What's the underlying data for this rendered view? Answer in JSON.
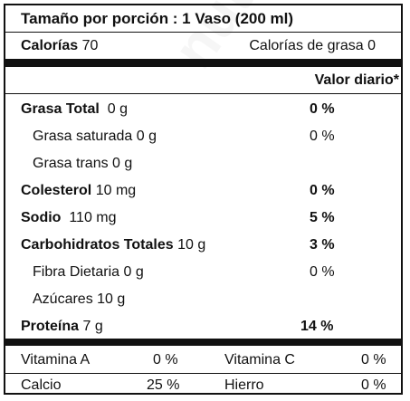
{
  "header": {
    "serving": "Tamaño por porción : 1 Vaso (200 ml)",
    "calories_label": "Calorías",
    "calories_value": "70",
    "fat_calories": "Calorías de grasa 0"
  },
  "daily_value_heading": "Valor diario*",
  "nutrients": [
    {
      "name": "Grasa Total",
      "amount": "0 g",
      "dv": "0 %"
    },
    {
      "name": "Grasa saturada",
      "amount": "0 g",
      "dv": "0 %"
    },
    {
      "name": "Grasa trans",
      "amount": "0 g",
      "dv": ""
    },
    {
      "name": "Colesterol",
      "amount": "10 mg",
      "dv": "0 %"
    },
    {
      "name": "Sodio",
      "amount": "110 mg",
      "dv": "5 %"
    },
    {
      "name": "Carbohidratos Totales",
      "amount": "10 g",
      "dv": "3 %"
    },
    {
      "name": "Fibra Dietaria",
      "amount": "0 g",
      "dv": "0 %"
    },
    {
      "name": "Azúcares",
      "amount": "10 g",
      "dv": ""
    },
    {
      "name": "Proteína",
      "amount": "7 g",
      "dv": "14 %"
    }
  ],
  "vitamins": [
    {
      "name": "Vitamina A",
      "value": "0 %"
    },
    {
      "name": "Vitamina C",
      "value": "0 %"
    },
    {
      "name": "Calcio",
      "value": "25 %"
    },
    {
      "name": "Hierro",
      "value": "0 %"
    }
  ]
}
